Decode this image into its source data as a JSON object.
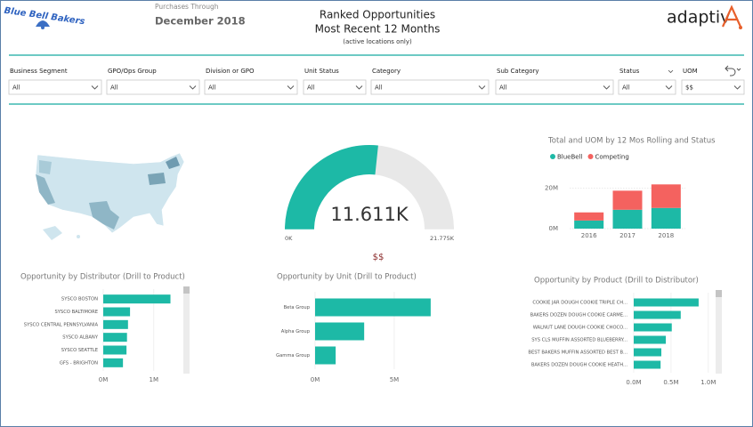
{
  "header": {
    "logo": "Blue Bell Bakers",
    "purchases_label": "Purchases Through",
    "purchases_date": "December 2018",
    "title": "Ranked Opportunities",
    "subtitle": "Most Recent 12 Months",
    "note": "(active locations only)",
    "brand": "adaptiv"
  },
  "filters": [
    {
      "label": "Business Segment",
      "value": "All"
    },
    {
      "label": "GPO/Ops Group",
      "value": "All"
    },
    {
      "label": "Division or GPO",
      "value": "All"
    },
    {
      "label": "Unit Status",
      "value": "All"
    },
    {
      "label": "Category",
      "value": "All"
    },
    {
      "label": "Sub Category",
      "value": "All"
    },
    {
      "label": "Status",
      "value": "All"
    },
    {
      "label": "UOM",
      "value": "$$"
    }
  ],
  "chart_data": [
    {
      "type": "bar",
      "orientation": "horizontal",
      "title": "Opportunity by Distributor (Drill to Product)",
      "categories": [
        "SYSCO BOSTON",
        "SYSCO BALTIMORE",
        "SYSCO CENTRAL PENNSYLVANIA",
        "SYSCO ALBANY",
        "SYSCO SEATTLE",
        "GFS - BRIGHTON"
      ],
      "values": [
        1330000,
        530000,
        490000,
        470000,
        460000,
        390000
      ],
      "color": "#1db9a6",
      "xlim": [
        0,
        1550000
      ],
      "xticks": [
        {
          "value": 0,
          "label": "0M"
        },
        {
          "value": 1000000,
          "label": "1M"
        }
      ]
    },
    {
      "type": "gauge",
      "values": [
        11611
      ],
      "value_labels": [
        "11.611K"
      ],
      "ylim": [
        0,
        21775
      ],
      "yticks": [
        {
          "value": 0,
          "label": "0K"
        },
        {
          "value": 21775,
          "label": "21.775K"
        }
      ],
      "subtitle": "$$",
      "color": "#1db9a6",
      "track_color": "#e8e8e8"
    },
    {
      "type": "bar",
      "orientation": "vertical",
      "stacked": true,
      "title": "Total and UOM by 12 Mos Rolling and Status",
      "categories": [
        "2016",
        "2017",
        "2018"
      ],
      "series": [
        {
          "name": "BlueBell",
          "color": "#1db9a6",
          "values": [
            4000000,
            9300000,
            10200000
          ]
        },
        {
          "name": "Competing",
          "color": "#f4625f",
          "values": [
            4000000,
            9400000,
            11600000
          ]
        }
      ],
      "ylim": [
        0,
        25000000
      ],
      "yticks": [
        {
          "value": 0,
          "label": "0M"
        },
        {
          "value": 20000000,
          "label": "20M"
        }
      ],
      "grid": true,
      "legend": "top"
    },
    {
      "type": "bar",
      "orientation": "horizontal",
      "title": "Opportunity by Unit (Drill to Product)",
      "categories": [
        "Beta Group",
        "Alpha Group",
        "Gamma Group"
      ],
      "values": [
        7300000,
        3100000,
        1300000
      ],
      "color": "#1db9a6",
      "xlim": [
        0,
        7700000
      ],
      "xticks": [
        {
          "value": 0,
          "label": "0M"
        },
        {
          "value": 5000000,
          "label": "5M"
        }
      ]
    },
    {
      "type": "bar",
      "orientation": "horizontal",
      "title": "Opportunity by Product (Drill to Distributor)",
      "categories": [
        "COOKIE JAR DOUGH COOKIE TRIPLE CH...",
        "BAKERS DOZEN DOUGH COOKIE CARME...",
        "WALNUT LANE DOUGH COOKIE CHOCO...",
        "SYS CLS MUFFIN ASSORTED BLUEBERRY...",
        "BEST BAKERS MUFFIN ASSORTED BEST B...",
        "BAKERS DOZEN DOUGH COOKIE HEATH..."
      ],
      "values": [
        870000,
        630000,
        510000,
        430000,
        370000,
        360000
      ],
      "color": "#1db9a6",
      "xlim": [
        0,
        1050000
      ],
      "xticks": [
        {
          "value": 0,
          "label": "0.0M"
        },
        {
          "value": 500000,
          "label": "0.5M"
        },
        {
          "value": 1000000,
          "label": "1.0M"
        }
      ]
    }
  ]
}
